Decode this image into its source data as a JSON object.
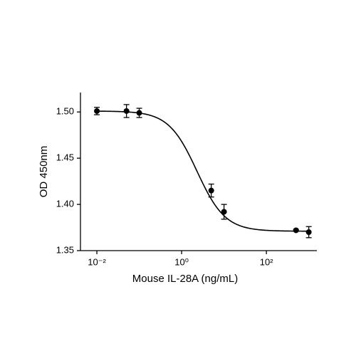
{
  "chart_data": {
    "type": "scatter",
    "x_label": "Mouse IL-28A (ng/mL)",
    "y_label": "OD 450nm",
    "x": [
      0.01,
      0.05,
      0.1,
      5,
      10,
      500,
      1000
    ],
    "values": [
      1.501,
      1.501,
      1.499,
      1.415,
      1.392,
      1.372,
      1.37
    ],
    "errors": [
      0.004,
      0.007,
      0.005,
      0.007,
      0.008,
      0.001,
      0.006
    ],
    "color": "#000000",
    "fit": {
      "top": 1.501,
      "bottom": 1.371,
      "ec50": 2.3,
      "hill": 1.3
    },
    "x_log": true,
    "xlim": [
      0.0041,
      1550
    ],
    "ylim": [
      1.35,
      1.521
    ],
    "xticks": [
      {
        "value": 0.01,
        "label": "10⁻²"
      },
      {
        "value": 1,
        "label": "10⁰"
      },
      {
        "value": 100,
        "label": "10²"
      }
    ],
    "yticks": [
      1.35,
      {
        "value": 1.4,
        "label": "1.40"
      },
      1.45,
      {
        "value": 1.5,
        "label": "1.50"
      }
    ]
  }
}
